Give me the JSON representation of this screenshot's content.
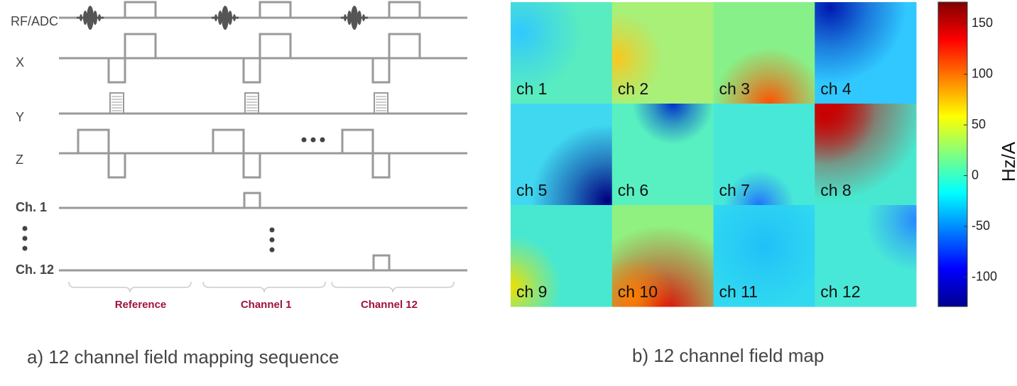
{
  "sequence": {
    "rows": [
      "RF/ADC",
      "X",
      "Y",
      "Z",
      "Ch. 1",
      "Ch. 12"
    ],
    "sections": [
      "Reference",
      "Channel 1",
      "Channel 12"
    ],
    "caption": "a) 12 channel field mapping sequence"
  },
  "field_map": {
    "channels": [
      "ch 1",
      "ch 2",
      "ch 3",
      "ch 4",
      "ch 5",
      "ch 6",
      "ch 7",
      "ch 8",
      "ch 9",
      "ch 10",
      "ch 11",
      "ch 12"
    ],
    "colorbar": {
      "label": "Hz/A",
      "lim": [
        -129,
        171
      ],
      "ticks": [
        -100,
        -50,
        0,
        50,
        100,
        150
      ]
    },
    "caption": "b) 12 channel field map"
  }
}
